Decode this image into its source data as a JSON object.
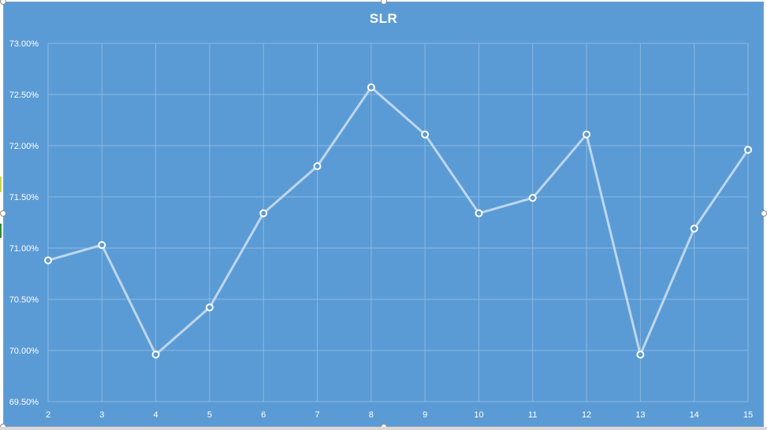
{
  "chart_data": {
    "type": "line",
    "title": "SLR",
    "xlabel": "",
    "ylabel": "",
    "x": [
      2,
      3,
      4,
      5,
      6,
      7,
      8,
      9,
      10,
      11,
      12,
      13,
      14,
      15
    ],
    "x_tick_labels": [
      "2",
      "3",
      "4",
      "5",
      "6",
      "7",
      "8",
      "9",
      "10",
      "11",
      "12",
      "13",
      "14",
      "15"
    ],
    "series": [
      {
        "values": [
          70.88,
          71.03,
          69.96,
          70.42,
          71.34,
          71.8,
          72.57,
          72.11,
          71.34,
          71.49,
          72.11,
          69.96,
          71.19,
          71.96
        ]
      }
    ],
    "ylim": [
      69.5,
      73.0
    ],
    "y_ticks": [
      69.5,
      70.0,
      70.5,
      71.0,
      71.5,
      72.0,
      72.5,
      73.0
    ],
    "y_tick_labels": [
      "69.50%",
      "70.00%",
      "70.50%",
      "71.00%",
      "71.50%",
      "72.00%",
      "72.50%",
      "73.00%"
    ],
    "grid": true,
    "legend": "none",
    "marker": "circle",
    "colors": {
      "background": "#5b9bd5",
      "line": "#bdd7ee",
      "marker_fill": "#5b9bd5",
      "marker_stroke": "#ffffff",
      "grid": "#8ab8e2",
      "text": "#ffffff"
    }
  }
}
